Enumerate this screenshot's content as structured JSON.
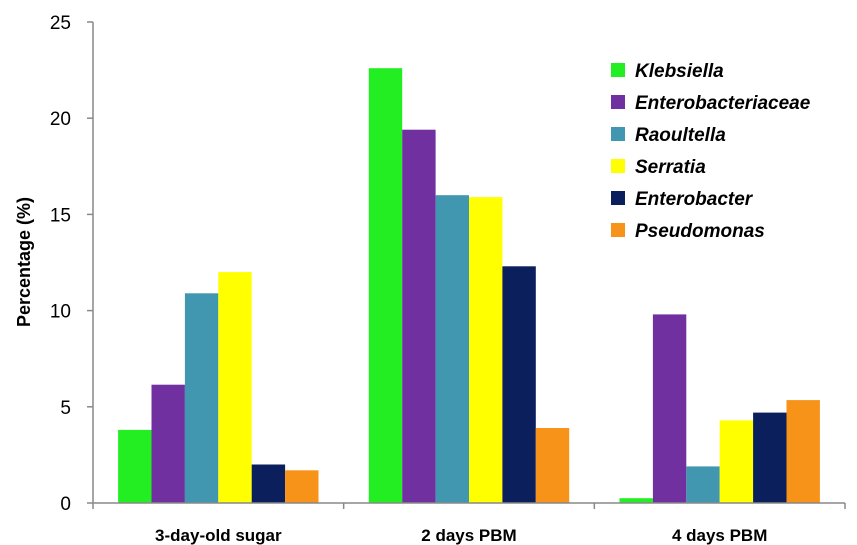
{
  "chart_data": {
    "type": "bar",
    "title": "",
    "xlabel": "",
    "ylabel": "Percentage (%)",
    "ylim": [
      0,
      25
    ],
    "yticks": [
      "0",
      "5",
      "10",
      "15",
      "20",
      "25"
    ],
    "categories": [
      "3-day-old sugar",
      "2 days PBM",
      "4 days PBM"
    ],
    "legend_position": "top-right",
    "grid": false,
    "series": [
      {
        "name": "Klebsiella",
        "color": "#22EE22",
        "values": [
          3.8,
          22.6,
          0.25
        ]
      },
      {
        "name": "Enterobacteriaceae",
        "color": "#7030A0",
        "values": [
          6.15,
          19.4,
          9.8
        ]
      },
      {
        "name": "Raoultella",
        "color": "#4196B0",
        "values": [
          10.9,
          16.0,
          1.9
        ]
      },
      {
        "name": "Serratia",
        "color": "#FFFF00",
        "values": [
          12.0,
          15.9,
          4.3
        ]
      },
      {
        "name": "Enterobacter",
        "color": "#0A1F5C",
        "values": [
          2.0,
          12.3,
          4.7
        ]
      },
      {
        "name": "Pseudomonas",
        "color": "#F79319",
        "values": [
          1.7,
          3.9,
          5.35
        ]
      }
    ]
  }
}
